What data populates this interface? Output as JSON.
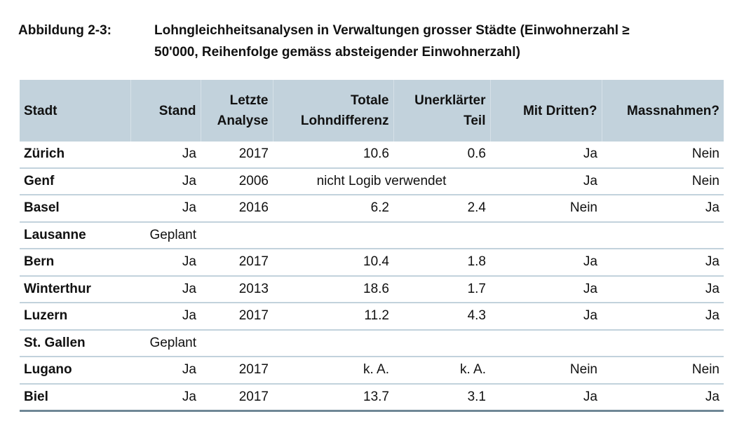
{
  "caption": {
    "label": "Abbildung 2-3:",
    "line1": "Lohngleichheitsanalysen in Verwaltungen grosser Städte (Einwohnerzahl ≥",
    "line2": "50'000, Reihenfolge gemäss absteigender Einwohnerzahl)"
  },
  "headers": {
    "stadt": "Stadt",
    "stand": "Stand",
    "letzte_1": "Letzte",
    "letzte_2": "Analyse",
    "totale_1": "Totale",
    "totale_2": "Lohndifferenz",
    "unerkl_1": "Unerklärter",
    "unerkl_2": "Teil",
    "dritten": "Mit Dritten?",
    "massnahmen": "Massnahmen?"
  },
  "rows": [
    {
      "stadt": "Zürich",
      "stand": "Ja",
      "analyse": "2017",
      "total": "10.6",
      "teil": "0.6",
      "dritten": "Ja",
      "massnahmen": "Nein"
    },
    {
      "stadt": "Genf",
      "stand": "Ja",
      "analyse": "2006",
      "merged": "nicht Logib verwendet",
      "dritten": "Ja",
      "massnahmen": "Nein"
    },
    {
      "stadt": "Basel",
      "stand": "Ja",
      "analyse": "2016",
      "total": "6.2",
      "teil": "2.4",
      "dritten": "Nein",
      "massnahmen": "Ja"
    },
    {
      "stadt": "Lausanne",
      "stand": "Geplant",
      "analyse": "",
      "total": "",
      "teil": "",
      "dritten": "",
      "massnahmen": ""
    },
    {
      "stadt": "Bern",
      "stand": "Ja",
      "analyse": "2017",
      "total": "10.4",
      "teil": "1.8",
      "dritten": "Ja",
      "massnahmen": "Ja"
    },
    {
      "stadt": "Winterthur",
      "stand": "Ja",
      "analyse": "2013",
      "total": "18.6",
      "teil": "1.7",
      "dritten": "Ja",
      "massnahmen": "Ja"
    },
    {
      "stadt": "Luzern",
      "stand": "Ja",
      "analyse": "2017",
      "total": "11.2",
      "teil": "4.3",
      "dritten": "Ja",
      "massnahmen": "Ja"
    },
    {
      "stadt": "St. Gallen",
      "stand": "Geplant",
      "analyse": "",
      "total": "",
      "teil": "",
      "dritten": "",
      "massnahmen": ""
    },
    {
      "stadt": "Lugano",
      "stand": "Ja",
      "analyse": "2017",
      "total": "k. A.",
      "teil": "k. A.",
      "dritten": "Nein",
      "massnahmen": "Nein"
    },
    {
      "stadt": "Biel",
      "stand": "Ja",
      "analyse": "2017",
      "total": "13.7",
      "teil": "3.1",
      "dritten": "Ja",
      "massnahmen": "Ja"
    }
  ]
}
